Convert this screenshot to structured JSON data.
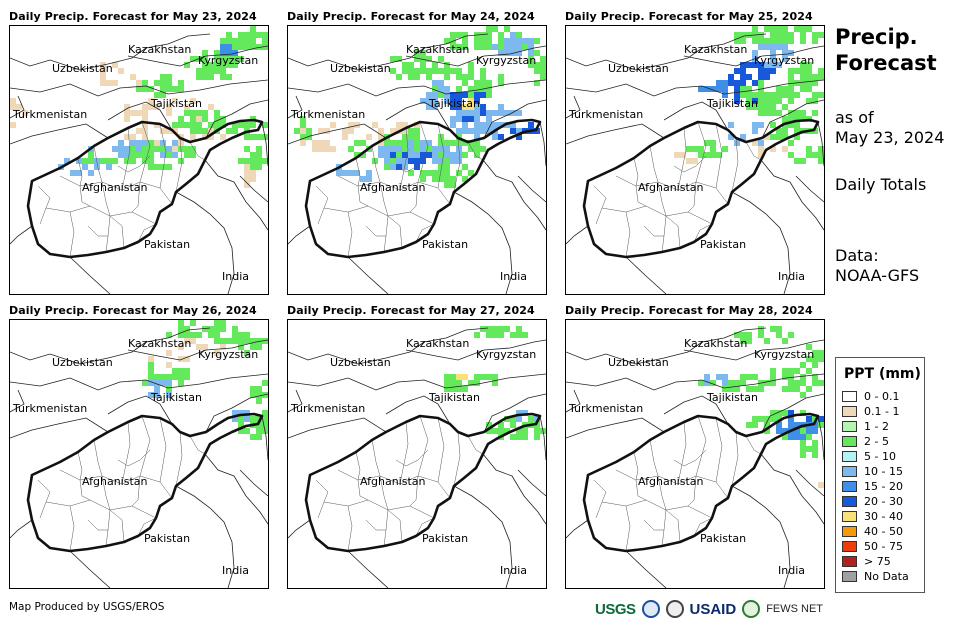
{
  "sidebar": {
    "title_line1": "Precip.",
    "title_line2": "Forecast",
    "asof_line1": "as of",
    "asof_line2": "May 23, 2024",
    "totals": "Daily Totals",
    "data_line1": "Data:",
    "data_line2": "NOAA-GFS"
  },
  "map_labels": {
    "kazakhstan": "Kazakhstan",
    "kyrgyzstan": "Kyrgyzstan",
    "uzbekistan": "Uzbekistan",
    "tajikistan": "Tajikistan",
    "turkmenistan": "Turkmenistan",
    "afghanistan": "Afghanistan",
    "pakistan": "Pakistan",
    "india": "India"
  },
  "panels": [
    {
      "title": "Daily Precip. Forecast for May 23, 2024",
      "day": "may23"
    },
    {
      "title": "Daily Precip. Forecast for May 24, 2024",
      "day": "may24"
    },
    {
      "title": "Daily Precip. Forecast for May 25, 2024",
      "day": "may25"
    },
    {
      "title": "Daily Precip. Forecast for May 26, 2024",
      "day": "may26"
    },
    {
      "title": "Daily Precip. Forecast for May 27, 2024",
      "day": "may27"
    },
    {
      "title": "Daily Precip. Forecast for May 28, 2024",
      "day": "may28"
    }
  ],
  "legend": {
    "title": "PPT (mm)",
    "items": [
      {
        "label": "0 - 0.1",
        "color": "#ffffff"
      },
      {
        "label": "0.1 - 1",
        "color": "#eed8b7"
      },
      {
        "label": "1 - 2",
        "color": "#b5f5b0"
      },
      {
        "label": "2 - 5",
        "color": "#64e85c"
      },
      {
        "label": "5 - 10",
        "color": "#b4f3f5"
      },
      {
        "label": "10 - 15",
        "color": "#7db8ee"
      },
      {
        "label": "15 - 20",
        "color": "#3f8fe8"
      },
      {
        "label": "20 - 30",
        "color": "#1659db"
      },
      {
        "label": "30 - 40",
        "color": "#f7e27a"
      },
      {
        "label": "40 - 50",
        "color": "#f59a0b"
      },
      {
        "label": "50 - 75",
        "color": "#ee3d0c"
      },
      {
        "label": "> 75",
        "color": "#b3201e"
      },
      {
        "label": "No Data",
        "color": "#a0a0a0"
      }
    ]
  },
  "credit": "Map Produced by USGS/EROS",
  "logos": {
    "usgs": "USGS",
    "usaid": "USAID",
    "fews": "FEWS NET"
  }
}
